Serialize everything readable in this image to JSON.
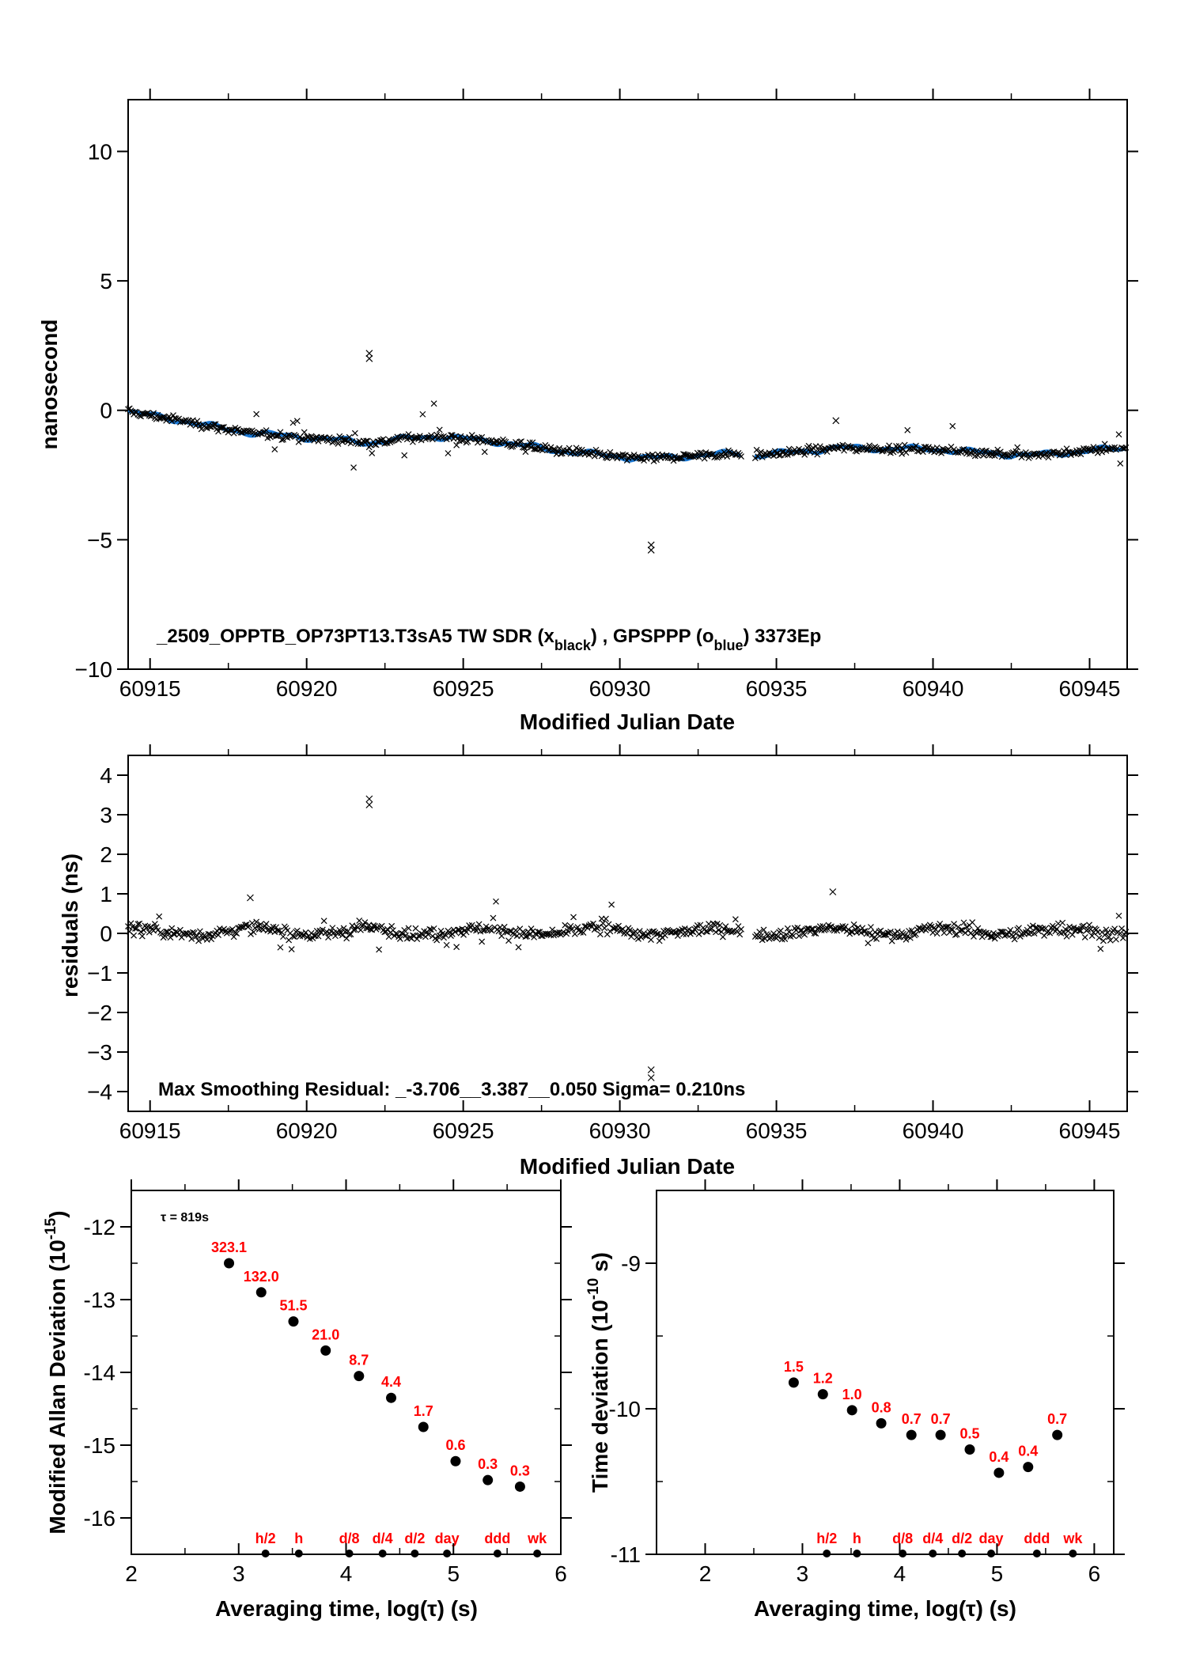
{
  "chart_data": [
    {
      "type": "scatter",
      "ylabel": "nanosecond",
      "xlabel": "Modified Julian Date",
      "xlim": [
        60914.3,
        60946.2
      ],
      "ylim": [
        -10,
        12
      ],
      "x_ticks": [
        "60915",
        "60920",
        "60925",
        "60930",
        "60935",
        "60940",
        "60945"
      ],
      "y_ticks": [
        "10",
        "5",
        "0",
        "−5",
        "−10"
      ],
      "annotation": {
        "prefix": "_2509_OPPTB_OP73PT13.T3sA5     TW SDR (x",
        "sub1": "black",
        "mid": ") ,  GPSPPP (o",
        "sub2": "blue",
        "suffix": ")  3373Ep"
      },
      "gap": [
        60933.9,
        60934.3
      ],
      "series": [
        {
          "marker": "x",
          "color": "#000000",
          "trend": [
            [
              60914.3,
              -0.05
            ],
            [
              60916,
              -0.4
            ],
            [
              60918,
              -0.85
            ],
            [
              60920,
              -1.05
            ],
            [
              60922,
              -1.25
            ],
            [
              60924,
              -1.0
            ],
            [
              60926,
              -1.2
            ],
            [
              60928,
              -1.55
            ],
            [
              60930,
              -1.8
            ],
            [
              60931,
              -1.85
            ],
            [
              60933.9,
              -1.65
            ],
            [
              60934.3,
              -1.75
            ],
            [
              60937,
              -1.45
            ],
            [
              60940,
              -1.5
            ],
            [
              60943,
              -1.75
            ],
            [
              60946.2,
              -1.45
            ]
          ],
          "outliers": [
            [
              60922,
              2.2
            ],
            [
              60922,
              2.0
            ],
            [
              60931,
              -5.2
            ],
            [
              60931,
              -5.4
            ],
            [
              60936.9,
              -0.4
            ]
          ]
        },
        {
          "marker": "o",
          "color": "#1a78d4"
        }
      ]
    },
    {
      "type": "scatter",
      "ylabel": "residuals (ns)",
      "xlabel": "Modified Julian Date",
      "xlim": [
        60914.3,
        60946.2
      ],
      "ylim": [
        -4.5,
        4.5
      ],
      "x_ticks": [
        "60915",
        "60920",
        "60925",
        "60930",
        "60935",
        "60940",
        "60945"
      ],
      "y_ticks": [
        "4",
        "3",
        "2",
        "1",
        "0",
        "−1",
        "−2",
        "−3",
        "−4"
      ],
      "annotation": "Max Smoothing Residual: _-3.706__3.387__0.050  Sigma= 0.210ns",
      "outliers": [
        [
          60922,
          3.4
        ],
        [
          60922,
          3.25
        ],
        [
          60931,
          -3.45
        ],
        [
          60931,
          -3.65
        ],
        [
          60936.8,
          1.05
        ],
        [
          60918.2,
          0.9
        ]
      ],
      "series": [
        {
          "marker": "x",
          "color": "#000000"
        }
      ]
    },
    {
      "type": "scatter",
      "ylabel_main": "Modified Allan Deviation (10",
      "ylabel_sup": "-15",
      "ylabel_end": ")",
      "xlabel": "Averaging time, log(τ) (s)",
      "xlim": [
        2,
        6
      ],
      "ylim": [
        -16.5,
        -11.5
      ],
      "x_ticks": [
        "2",
        "3",
        "4",
        "5",
        "6"
      ],
      "y_ticks": [
        "-12",
        "-13",
        "-14",
        "-15",
        "-16"
      ],
      "tau_note": "τ = 819s",
      "x": [
        2.91,
        3.21,
        3.51,
        3.81,
        4.12,
        4.42,
        4.72,
        5.02,
        5.32,
        5.62
      ],
      "y": [
        -12.5,
        -12.9,
        -13.3,
        -13.7,
        -14.05,
        -14.35,
        -14.75,
        -15.22,
        -15.48,
        -15.57
      ],
      "value_labels": [
        "323.1",
        "132.0",
        "51.5",
        "21.0",
        "8.7",
        "4.4",
        "1.7",
        "0.6",
        "0.3",
        "0.3"
      ],
      "markers": [
        {
          "x": 3.25,
          "label": "h/2"
        },
        {
          "x": 3.56,
          "label": "h"
        },
        {
          "x": 4.03,
          "label": "d/8"
        },
        {
          "x": 4.34,
          "label": "d/4"
        },
        {
          "x": 4.64,
          "label": "d/2"
        },
        {
          "x": 4.94,
          "label": "day"
        },
        {
          "x": 5.41,
          "label": "ddd"
        },
        {
          "x": 5.78,
          "label": "wk"
        }
      ]
    },
    {
      "type": "scatter",
      "ylabel_main": "Time deviation (10",
      "ylabel_sup": "-10",
      "ylabel_end": " s)",
      "xlabel": "Averaging time, log(τ) (s)",
      "xlim": [
        1.5,
        6.2
      ],
      "ylim": [
        -11,
        -8.5
      ],
      "x_ticks": [
        "2",
        "3",
        "4",
        "5",
        "6"
      ],
      "y_ticks": [
        "-9",
        "-10",
        "-11"
      ],
      "x": [
        2.91,
        3.21,
        3.51,
        3.81,
        4.12,
        4.42,
        4.72,
        5.02,
        5.32,
        5.62
      ],
      "y": [
        -9.82,
        -9.9,
        -10.01,
        -10.1,
        -10.18,
        -10.18,
        -10.28,
        -10.44,
        -10.4,
        -10.18
      ],
      "value_labels": [
        "1.5",
        "1.2",
        "1.0",
        "0.8",
        "0.7",
        "0.7",
        "0.5",
        "0.4",
        "0.4",
        "0.7"
      ],
      "markers": [
        {
          "x": 3.25,
          "label": "h/2"
        },
        {
          "x": 3.56,
          "label": "h"
        },
        {
          "x": 4.03,
          "label": "d/8"
        },
        {
          "x": 4.34,
          "label": "d/4"
        },
        {
          "x": 4.64,
          "label": "d/2"
        },
        {
          "x": 4.94,
          "label": "day"
        },
        {
          "x": 5.41,
          "label": "ddd"
        },
        {
          "x": 5.78,
          "label": "wk"
        }
      ]
    }
  ]
}
